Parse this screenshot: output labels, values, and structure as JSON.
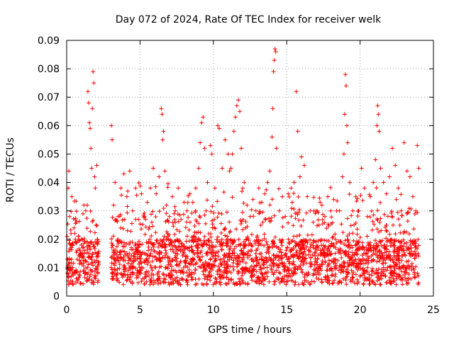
{
  "chart_data": {
    "type": "scatter",
    "title": "Day 072 of 2024, Rate Of TEC Index for receiver welk",
    "xlabel": "GPS time / hours",
    "ylabel": "ROTI / TECUs",
    "xlim": [
      0,
      25
    ],
    "ylim": [
      0,
      0.09
    ],
    "x_ticks": [
      0,
      5,
      10,
      15,
      20,
      25
    ],
    "x_tick_labels": [
      "0",
      "5",
      "10",
      "15",
      "20",
      "25"
    ],
    "y_ticks": [
      0,
      0.01,
      0.02,
      0.03,
      0.04,
      0.05,
      0.06,
      0.07,
      0.08,
      0.09
    ],
    "y_tick_labels": [
      "0",
      "0.01",
      "0.02",
      "0.03",
      "0.04",
      "0.05",
      "0.06",
      "0.07",
      "0.08",
      "0.09"
    ],
    "grid": true,
    "marker": "plus",
    "marker_color": "#ff0000",
    "data_gap_hours": [
      2.2,
      3.0
    ],
    "series": [
      {
        "name": "ROTI",
        "points": [
          [
            0.05,
            0.013
          ],
          [
            0.1,
            0.038
          ],
          [
            0.15,
            0.044
          ],
          [
            0.2,
            0.028
          ],
          [
            0.3,
            0.022
          ],
          [
            0.35,
            0.035
          ],
          [
            0.4,
            0.018
          ],
          [
            0.5,
            0.024
          ],
          [
            0.6,
            0.02
          ],
          [
            0.7,
            0.016
          ],
          [
            0.8,
            0.021
          ],
          [
            0.9,
            0.014
          ],
          [
            1.0,
            0.02
          ],
          [
            1.1,
            0.017
          ],
          [
            1.2,
            0.015
          ],
          [
            1.3,
            0.03
          ],
          [
            1.4,
            0.032
          ],
          [
            1.45,
            0.072
          ],
          [
            1.5,
            0.068
          ],
          [
            1.55,
            0.061
          ],
          [
            1.6,
            0.059
          ],
          [
            1.65,
            0.052
          ],
          [
            1.7,
            0.045
          ],
          [
            1.75,
            0.066
          ],
          [
            1.8,
            0.079
          ],
          [
            1.85,
            0.075
          ],
          [
            1.9,
            0.042
          ],
          [
            1.95,
            0.038
          ],
          [
            2.0,
            0.025
          ],
          [
            2.05,
            0.046
          ],
          [
            2.1,
            0.02
          ],
          [
            2.15,
            0.015
          ],
          [
            3.05,
            0.06
          ],
          [
            3.1,
            0.055
          ],
          [
            3.2,
            0.032
          ],
          [
            3.3,
            0.04
          ],
          [
            3.5,
            0.028
          ],
          [
            3.7,
            0.038
          ],
          [
            3.9,
            0.043
          ],
          [
            4.1,
            0.035
          ],
          [
            4.3,
            0.044
          ],
          [
            4.5,
            0.03
          ],
          [
            4.7,
            0.038
          ],
          [
            4.9,
            0.027
          ],
          [
            5.1,
            0.036
          ],
          [
            5.3,
            0.028
          ],
          [
            5.5,
            0.033
          ],
          [
            5.7,
            0.038
          ],
          [
            5.9,
            0.045
          ],
          [
            6.1,
            0.036
          ],
          [
            6.3,
            0.042
          ],
          [
            6.45,
            0.066
          ],
          [
            6.5,
            0.064
          ],
          [
            6.55,
            0.055
          ],
          [
            6.6,
            0.058
          ],
          [
            6.7,
            0.044
          ],
          [
            6.8,
            0.032
          ],
          [
            7.0,
            0.028
          ],
          [
            7.2,
            0.035
          ],
          [
            7.4,
            0.03
          ],
          [
            7.6,
            0.038
          ],
          [
            7.8,
            0.027
          ],
          [
            8.0,
            0.033
          ],
          [
            8.2,
            0.03
          ],
          [
            8.4,
            0.036
          ],
          [
            8.6,
            0.033
          ],
          [
            8.8,
            0.038
          ],
          [
            9.0,
            0.045
          ],
          [
            9.1,
            0.054
          ],
          [
            9.2,
            0.061
          ],
          [
            9.3,
            0.063
          ],
          [
            9.4,
            0.052
          ],
          [
            9.5,
            0.03
          ],
          [
            9.6,
            0.04
          ],
          [
            9.8,
            0.053
          ],
          [
            9.9,
            0.05
          ],
          [
            10.1,
            0.038
          ],
          [
            10.3,
            0.06
          ],
          [
            10.4,
            0.059
          ],
          [
            10.6,
            0.045
          ],
          [
            10.8,
            0.055
          ],
          [
            11.0,
            0.05
          ],
          [
            11.1,
            0.044
          ],
          [
            11.2,
            0.045
          ],
          [
            11.3,
            0.05
          ],
          [
            11.4,
            0.058
          ],
          [
            11.5,
            0.063
          ],
          [
            11.6,
            0.067
          ],
          [
            11.7,
            0.069
          ],
          [
            11.8,
            0.065
          ],
          [
            11.9,
            0.052
          ],
          [
            12.0,
            0.038
          ],
          [
            12.1,
            0.04
          ],
          [
            12.3,
            0.032
          ],
          [
            12.5,
            0.028
          ],
          [
            12.7,
            0.034
          ],
          [
            12.9,
            0.03
          ],
          [
            13.1,
            0.038
          ],
          [
            13.3,
            0.033
          ],
          [
            13.5,
            0.036
          ],
          [
            13.7,
            0.04
          ],
          [
            13.85,
            0.044
          ],
          [
            14.0,
            0.056
          ],
          [
            14.05,
            0.066
          ],
          [
            14.1,
            0.079
          ],
          [
            14.15,
            0.083
          ],
          [
            14.2,
            0.087
          ],
          [
            14.25,
            0.086
          ],
          [
            14.3,
            0.052
          ],
          [
            14.5,
            0.03
          ],
          [
            14.7,
            0.035
          ],
          [
            14.9,
            0.028
          ],
          [
            15.1,
            0.036
          ],
          [
            15.3,
            0.038
          ],
          [
            15.5,
            0.04
          ],
          [
            15.65,
            0.072
          ],
          [
            15.75,
            0.058
          ],
          [
            15.9,
            0.042
          ],
          [
            16.0,
            0.049
          ],
          [
            16.2,
            0.046
          ],
          [
            16.4,
            0.035
          ],
          [
            16.6,
            0.03
          ],
          [
            16.8,
            0.026
          ],
          [
            17.0,
            0.03
          ],
          [
            17.2,
            0.025
          ],
          [
            17.4,
            0.032
          ],
          [
            17.6,
            0.028
          ],
          [
            17.8,
            0.035
          ],
          [
            18.0,
            0.03
          ],
          [
            18.2,
            0.034
          ],
          [
            18.4,
            0.03
          ],
          [
            18.6,
            0.03
          ],
          [
            18.8,
            0.042
          ],
          [
            18.9,
            0.05
          ],
          [
            18.95,
            0.064
          ],
          [
            19.0,
            0.078
          ],
          [
            19.05,
            0.074
          ],
          [
            19.1,
            0.06
          ],
          [
            19.15,
            0.054
          ],
          [
            19.3,
            0.04
          ],
          [
            19.5,
            0.03
          ],
          [
            19.7,
            0.035
          ],
          [
            19.9,
            0.03
          ],
          [
            20.1,
            0.045
          ],
          [
            20.3,
            0.038
          ],
          [
            20.5,
            0.028
          ],
          [
            20.7,
            0.035
          ],
          [
            20.9,
            0.04
          ],
          [
            21.05,
            0.048
          ],
          [
            21.15,
            0.06
          ],
          [
            21.2,
            0.067
          ],
          [
            21.25,
            0.064
          ],
          [
            21.3,
            0.058
          ],
          [
            21.4,
            0.045
          ],
          [
            21.6,
            0.04
          ],
          [
            21.8,
            0.036
          ],
          [
            22.0,
            0.042
          ],
          [
            22.2,
            0.052
          ],
          [
            22.4,
            0.046
          ],
          [
            22.6,
            0.038
          ],
          [
            22.8,
            0.03
          ],
          [
            23.0,
            0.054
          ],
          [
            23.2,
            0.044
          ],
          [
            23.4,
            0.042
          ],
          [
            23.6,
            0.035
          ],
          [
            23.8,
            0.03
          ],
          [
            23.9,
            0.053
          ],
          [
            24.0,
            0.045
          ]
        ]
      }
    ]
  }
}
